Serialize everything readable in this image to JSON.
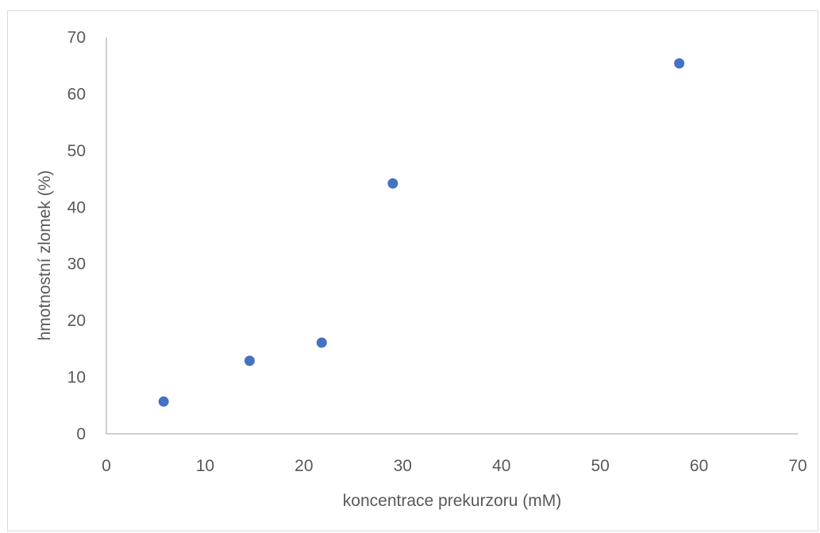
{
  "chart_data": {
    "type": "scatter",
    "title": "",
    "xlabel": "koncentrace prekurzoru (mM)",
    "ylabel": "hmotnostní zlomek (%)",
    "xlim": [
      0,
      70
    ],
    "ylim": [
      0,
      70
    ],
    "x_ticks": [
      "0",
      "10",
      "20",
      "30",
      "40",
      "50",
      "60",
      "70"
    ],
    "y_ticks": [
      "0",
      "10",
      "20",
      "30",
      "40",
      "50",
      "60",
      "70"
    ],
    "grid": false,
    "legend": "none",
    "series": [
      {
        "color": "#4472c4",
        "points": [
          {
            "x": 5.8,
            "y": 5.7
          },
          {
            "x": 14.5,
            "y": 12.9
          },
          {
            "x": 21.8,
            "y": 16.1
          },
          {
            "x": 29.0,
            "y": 44.2
          },
          {
            "x": 58.0,
            "y": 65.4
          }
        ]
      }
    ]
  }
}
